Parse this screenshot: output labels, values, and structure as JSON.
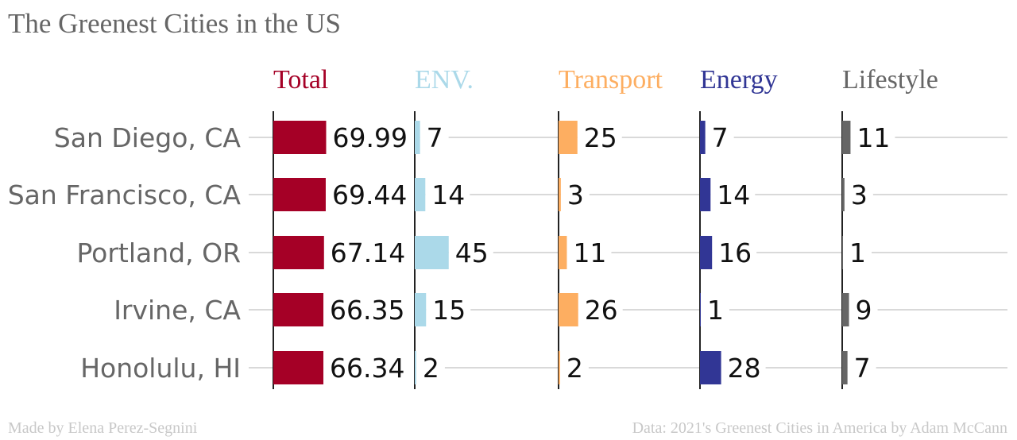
{
  "title": "The Greenest Cities in the US",
  "footer": {
    "left": "Made by Elena Perez-Segnini",
    "right": "Data: 2021's Greenest Cities in America by Adam McCann"
  },
  "chart_data": {
    "type": "bar",
    "orientation": "horizontal",
    "title": "The Greenest Cities in the US",
    "categories": [
      "San Diego, CA",
      "San Francisco, CA",
      "Portland, OR",
      "Irvine, CA",
      "Honolulu, HI"
    ],
    "series": [
      {
        "name": "Total",
        "color": "#a50026",
        "values": [
          "69.99",
          "69.44",
          "67.14",
          "66.35",
          "66.34"
        ]
      },
      {
        "name": "ENV.",
        "color": "#abd9e9",
        "values": [
          "7",
          "14",
          "45",
          "15",
          "2"
        ]
      },
      {
        "name": "Transport",
        "color": "#fdae61",
        "values": [
          "25",
          "3",
          "11",
          "26",
          "2"
        ]
      },
      {
        "name": "Energy",
        "color": "#313695",
        "values": [
          "7",
          "14",
          "16",
          "1",
          "28"
        ]
      },
      {
        "name": "Lifestyle",
        "color": "#666666",
        "values": [
          "11",
          "3",
          "1",
          "9",
          "7"
        ]
      }
    ],
    "grid": true,
    "legend": "column-headers"
  }
}
